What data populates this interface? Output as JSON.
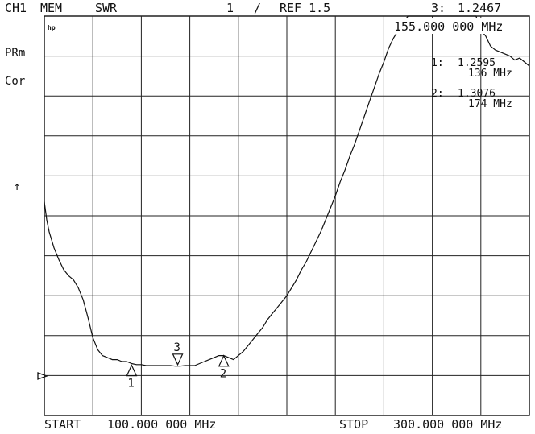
{
  "header": {
    "channel": "CH1",
    "mem": "MEM",
    "format": "SWR",
    "scale": "1",
    "slash": "/",
    "ref": "REF 1.5"
  },
  "status": {
    "prm": "PRm",
    "cor": "Cor",
    "arrow": "↑"
  },
  "logo": "hp",
  "active_marker": {
    "label": "3:",
    "value": "1.2467",
    "freq": "155.000 000 MHz"
  },
  "marker_list": [
    {
      "label": "1:",
      "value": "1.2595",
      "freq": "136 MHz"
    },
    {
      "label": "2:",
      "value": "1.3076",
      "freq": "174 MHz"
    }
  ],
  "footer": {
    "start_label": "START",
    "start_value": "100.000 000 MHz",
    "stop_label": "STOP",
    "stop_value": "300.000 000 MHz"
  },
  "chart_data": {
    "type": "line",
    "xlabel": "",
    "ylabel": "",
    "x_unit": "MHz",
    "xlim": [
      100,
      300
    ],
    "ylim": [
      1.0,
      3.0
    ],
    "reference_value": 1.5,
    "scale_per_div": 1,
    "grid": true,
    "x_divisions": 10,
    "y_divisions": 10,
    "series": [
      {
        "x": [
          100,
          101,
          102,
          104,
          106,
          108,
          110,
          112,
          114,
          116,
          118,
          120,
          122,
          124,
          126,
          128,
          130,
          132,
          134,
          136,
          138,
          140,
          142,
          144,
          146,
          148,
          150,
          152,
          154,
          156,
          158,
          160,
          162,
          164,
          166,
          168,
          170,
          172,
          174,
          176,
          178,
          180,
          182,
          184,
          186,
          188,
          190,
          192,
          194,
          196,
          198,
          200,
          202,
          204,
          206,
          208,
          210,
          212,
          214,
          216,
          218,
          220,
          222,
          224,
          226,
          228,
          230,
          232,
          234,
          236,
          238,
          240,
          242,
          244,
          246,
          248,
          250,
          252,
          254,
          256,
          258,
          260,
          262,
          264,
          266,
          268,
          270,
          272,
          274,
          276,
          278,
          280,
          282,
          284,
          286,
          288,
          290,
          292,
          294,
          296,
          298,
          300
        ],
        "y": [
          2.07,
          1.98,
          1.92,
          1.84,
          1.78,
          1.73,
          1.7,
          1.68,
          1.64,
          1.58,
          1.49,
          1.39,
          1.33,
          1.3,
          1.29,
          1.28,
          1.28,
          1.27,
          1.27,
          1.26,
          1.255,
          1.255,
          1.25,
          1.25,
          1.25,
          1.25,
          1.25,
          1.25,
          1.247,
          1.247,
          1.25,
          1.25,
          1.25,
          1.26,
          1.27,
          1.28,
          1.29,
          1.3,
          1.3,
          1.29,
          1.28,
          1.3,
          1.32,
          1.35,
          1.38,
          1.41,
          1.44,
          1.48,
          1.51,
          1.54,
          1.57,
          1.6,
          1.64,
          1.68,
          1.73,
          1.77,
          1.82,
          1.87,
          1.92,
          1.98,
          2.04,
          2.1,
          2.17,
          2.23,
          2.3,
          2.36,
          2.43,
          2.5,
          2.57,
          2.64,
          2.71,
          2.77,
          2.84,
          2.89,
          2.93,
          2.97,
          3.0,
          3.0,
          3.0,
          3.0,
          3.0,
          3.0,
          3.0,
          3.0,
          3.0,
          3.0,
          3.0,
          3.0,
          3.0,
          3.0,
          3.0,
          2.93,
          2.9,
          2.85,
          2.83,
          2.82,
          2.81,
          2.8,
          2.78,
          2.79,
          2.77,
          2.75
        ]
      }
    ],
    "markers": [
      {
        "label": "1",
        "x": 136,
        "y": 1.2595,
        "orientation": "below"
      },
      {
        "label": "2",
        "x": 174,
        "y": 1.3076,
        "orientation": "below"
      },
      {
        "label": "3",
        "x": 155,
        "y": 1.2467,
        "orientation": "above"
      }
    ]
  }
}
